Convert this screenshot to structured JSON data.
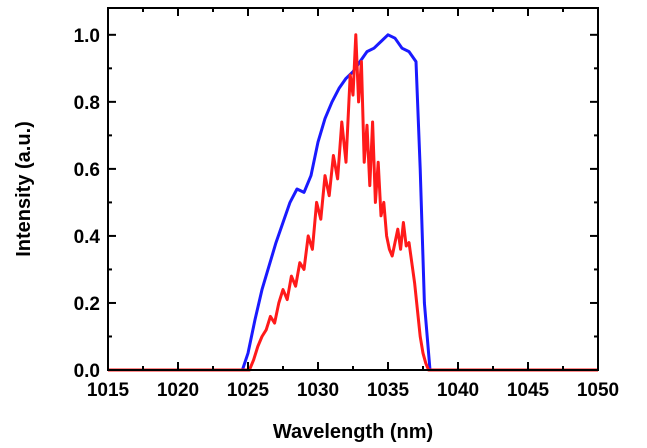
{
  "chart_data": {
    "type": "line",
    "xlabel": "Wavelength (nm)",
    "ylabel": "Intensity (a.u.)",
    "xlim": [
      1015,
      1050
    ],
    "ylim": [
      0,
      1.08
    ],
    "x_ticks": [
      1015,
      1020,
      1025,
      1030,
      1035,
      1040,
      1045,
      1050
    ],
    "x_tick_labels": [
      "1015",
      "1020",
      "1025",
      "1030",
      "1035",
      "1040",
      "1045",
      "1050"
    ],
    "y_ticks": [
      0.0,
      0.2,
      0.4,
      0.6,
      0.8,
      1.0
    ],
    "y_tick_labels": [
      "0.0",
      "0.2",
      "0.4",
      "0.6",
      "0.8",
      "1.0"
    ],
    "grid": false,
    "legend": "none",
    "series": [
      {
        "color": "#1a1aff",
        "x": [
          1015,
          1024.6,
          1025.0,
          1025.5,
          1026.0,
          1026.5,
          1027.0,
          1027.5,
          1028.0,
          1028.5,
          1029.0,
          1029.5,
          1030.0,
          1030.5,
          1031.0,
          1031.5,
          1032.0,
          1032.5,
          1033.0,
          1033.5,
          1034.0,
          1034.5,
          1035.0,
          1035.5,
          1036.0,
          1036.5,
          1037.0,
          1037.3,
          1037.6,
          1038.0,
          1050
        ],
        "y": [
          0.0,
          0.0,
          0.05,
          0.15,
          0.24,
          0.31,
          0.38,
          0.44,
          0.5,
          0.54,
          0.53,
          0.58,
          0.68,
          0.75,
          0.8,
          0.84,
          0.87,
          0.89,
          0.92,
          0.95,
          0.96,
          0.98,
          1.0,
          0.99,
          0.96,
          0.95,
          0.92,
          0.6,
          0.2,
          0.0,
          0.0
        ]
      },
      {
        "color": "#ff1a1a",
        "x": [
          1015,
          1025.1,
          1025.4,
          1025.7,
          1026.0,
          1026.3,
          1026.6,
          1026.9,
          1027.2,
          1027.5,
          1027.8,
          1028.1,
          1028.4,
          1028.7,
          1029.0,
          1029.3,
          1029.6,
          1029.9,
          1030.2,
          1030.5,
          1030.8,
          1031.1,
          1031.4,
          1031.7,
          1032.0,
          1032.3,
          1032.5,
          1032.7,
          1032.9,
          1033.1,
          1033.3,
          1033.5,
          1033.7,
          1033.9,
          1034.1,
          1034.3,
          1034.5,
          1034.7,
          1034.9,
          1035.1,
          1035.3,
          1035.5,
          1035.7,
          1035.9,
          1036.1,
          1036.3,
          1036.5,
          1036.7,
          1036.9,
          1037.1,
          1037.3,
          1037.5,
          1037.7,
          1037.9,
          1038.2,
          1050
        ],
        "y": [
          0.0,
          0.0,
          0.03,
          0.07,
          0.1,
          0.12,
          0.16,
          0.14,
          0.2,
          0.24,
          0.21,
          0.28,
          0.25,
          0.32,
          0.3,
          0.4,
          0.36,
          0.5,
          0.45,
          0.58,
          0.52,
          0.64,
          0.57,
          0.74,
          0.62,
          0.88,
          0.82,
          1.0,
          0.8,
          0.92,
          0.62,
          0.73,
          0.55,
          0.74,
          0.5,
          0.62,
          0.46,
          0.5,
          0.4,
          0.36,
          0.34,
          0.38,
          0.42,
          0.36,
          0.44,
          0.37,
          0.38,
          0.32,
          0.26,
          0.18,
          0.1,
          0.05,
          0.02,
          0.0,
          0.0,
          0.0
        ]
      }
    ]
  }
}
